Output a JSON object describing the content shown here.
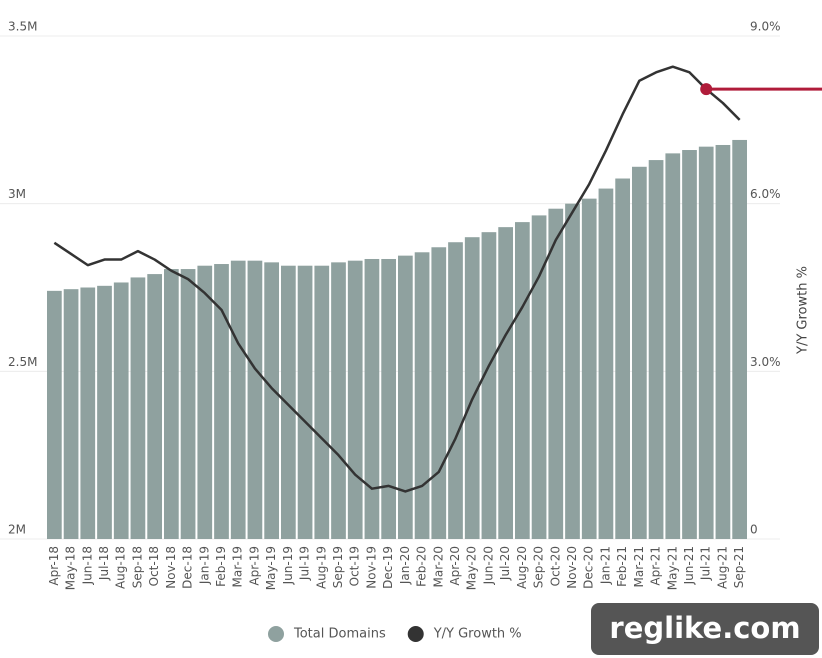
{
  "chart_data": {
    "type": "bar_line",
    "categories": [
      "Apr-18",
      "May-18",
      "Jun-18",
      "Jul-18",
      "Aug-18",
      "Sep-18",
      "Oct-18",
      "Nov-18",
      "Dec-18",
      "Jan-19",
      "Feb-19",
      "Mar-19",
      "Apr-19",
      "May-19",
      "Jun-19",
      "Jul-19",
      "Aug-19",
      "Sep-19",
      "Oct-19",
      "Nov-19",
      "Dec-19",
      "Jan-20",
      "Feb-20",
      "Mar-20",
      "Apr-20",
      "May-20",
      "Jun-20",
      "Jul-20",
      "Aug-20",
      "Sep-20",
      "Oct-20",
      "Nov-20",
      "Dec-20",
      "Jan-21",
      "Feb-21",
      "Mar-21",
      "Apr-21",
      "May-21",
      "Jun-21",
      "Jul-21",
      "Aug-21",
      "Sep-21"
    ],
    "series": [
      {
        "name": "Total Domains",
        "color": "#8fa19f",
        "values": [
          2740000,
          2745000,
          2750000,
          2755000,
          2765000,
          2780000,
          2790000,
          2805000,
          2805000,
          2815000,
          2820000,
          2830000,
          2830000,
          2825000,
          2815000,
          2815000,
          2815000,
          2825000,
          2830000,
          2835000,
          2835000,
          2845000,
          2855000,
          2870000,
          2885000,
          2900000,
          2915000,
          2930000,
          2945000,
          2965000,
          2985000,
          3000000,
          3015000,
          3045000,
          3075000,
          3110000,
          3130000,
          3150000,
          3160000,
          3170000,
          3175000,
          3190000
        ]
      },
      {
        "name": "Y/Y Growth %",
        "color": "#333333",
        "axis": "y2",
        "values": [
          5.3,
          5.1,
          4.9,
          5.0,
          5.0,
          5.15,
          5.0,
          4.8,
          4.65,
          4.4,
          4.1,
          3.5,
          3.05,
          2.7,
          2.4,
          2.1,
          1.8,
          1.5,
          1.15,
          0.9,
          0.95,
          0.85,
          0.95,
          1.2,
          1.8,
          2.5,
          3.1,
          3.65,
          4.15,
          4.7,
          5.35,
          5.85,
          6.35,
          6.95,
          7.6,
          8.2,
          8.35,
          8.45,
          8.35,
          8.05,
          7.8,
          7.5
        ]
      }
    ],
    "ylim": [
      2000000,
      3500000
    ],
    "yticks": [
      {
        "value": 2000000,
        "label": "2M"
      },
      {
        "value": 2500000,
        "label": "2.5M"
      },
      {
        "value": 3000000,
        "label": "3M"
      },
      {
        "value": 3500000,
        "label": "3.5M"
      }
    ],
    "y2lim": [
      0,
      9
    ],
    "y2ticks": [
      0,
      {
        "value": 3,
        "label": "3.0%"
      },
      {
        "value": 6,
        "label": "6.0%"
      },
      {
        "value": 9,
        "label": "9.0%"
      }
    ],
    "y2label": "Y/Y Growth %",
    "grid": true,
    "highlight_color": "#b01c3a",
    "watermark": "reglike.com"
  }
}
